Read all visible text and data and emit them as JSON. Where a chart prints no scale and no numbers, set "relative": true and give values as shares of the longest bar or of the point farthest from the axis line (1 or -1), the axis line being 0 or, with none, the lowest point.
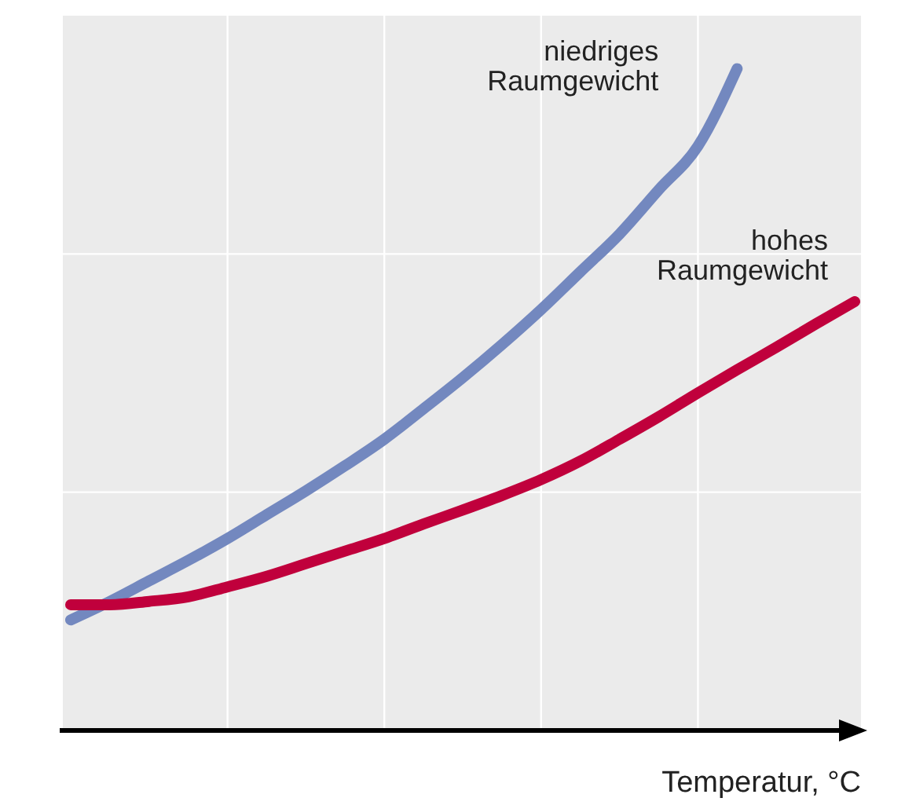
{
  "chart_data": {
    "type": "line",
    "relative": true,
    "xlabel": "Temperatur, °C",
    "grid": true,
    "marker": "none",
    "line_style": "solid",
    "categories": [
      null,
      null,
      null,
      null,
      null,
      null,
      null,
      null,
      null,
      null,
      null,
      null,
      null,
      null,
      null,
      null,
      null,
      null,
      null,
      null,
      null
    ],
    "series": [
      {
        "name": "niedriges Raumgewicht",
        "color": "#7388bf",
        "values": [
          0.167,
          0.195,
          0.226,
          0.257,
          0.29,
          0.326,
          0.362,
          0.4,
          0.44,
          0.486,
          0.533,
          0.583,
          0.636,
          0.693,
          0.75,
          0.817,
          0.883,
          1,
          null,
          null,
          null
        ]
      },
      {
        "name": "hohes Raumgewicht",
        "color": "#c0003c",
        "values": [
          0.19,
          0.19,
          0.195,
          0.202,
          0.217,
          0.233,
          0.252,
          0.271,
          0.29,
          0.312,
          0.333,
          0.355,
          0.379,
          0.407,
          0.44,
          0.474,
          0.51,
          0.545,
          0.579,
          0.614,
          0.648
        ]
      }
    ]
  }
}
